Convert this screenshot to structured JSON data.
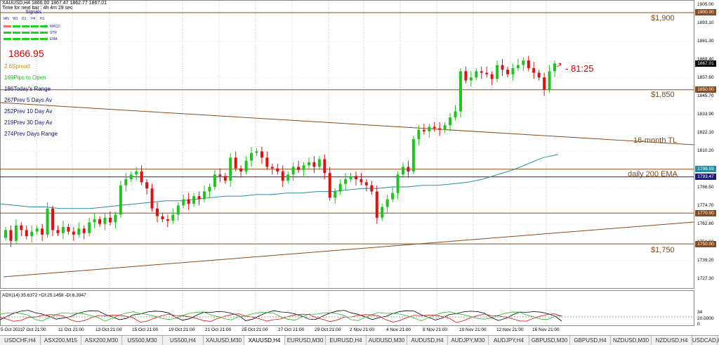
{
  "header": {
    "symbol_line": "XAUUSD,H4  1866.00 1867.47 1862.77 1867.01",
    "time_line": "Time for next bar : 4h 4m 29 sec",
    "signals_title": "Signals"
  },
  "signals": {
    "timeframes": [
      "MN",
      "W1",
      "D1",
      "H4",
      "H1"
    ],
    "indicators": [
      "MACD",
      "STR",
      "EMA"
    ],
    "colors": {
      "bull": "#1fd21f",
      "bear": "#ff6a60"
    }
  },
  "info_panel": {
    "bid": "1866.95",
    "rows": [
      {
        "value": "2.6",
        "label": "Spread",
        "color": "#e08a00"
      },
      {
        "value": "169",
        "label": "Pips to Open",
        "color": "#1fb81f"
      },
      {
        "value": "186",
        "label": "Today's Range",
        "color": "#10106a"
      },
      {
        "value": "267",
        "label": "Prev 5 Days Av",
        "color": "#10106a"
      },
      {
        "value": "252",
        "label": "Prev 10 Day Av",
        "color": "#10106a"
      },
      {
        "value": "219",
        "label": "Prev 30 Day Av",
        "color": "#10106a"
      },
      {
        "value": "274",
        "label": "Prev Days Range",
        "color": "#10106a"
      }
    ]
  },
  "annotations": {
    "level_1900": "$1,900",
    "level_1850": "$1,850",
    "level_1750": "$1,750",
    "trendline": "16-month TL",
    "ema": "daily 200 EMA",
    "timer": "- 81:25"
  },
  "chart_data": {
    "type": "candlestick",
    "symbol": "XAUUSD",
    "timeframe": "H4",
    "ylim": [
      1724,
      1908
    ],
    "y_ticks": [
      "1905.00",
      "1893.10",
      "1881.30",
      "1869.40",
      "1857.60",
      "1845.70",
      "1833.90",
      "1822.10",
      "1810.20",
      "1798.40",
      "1786.50",
      "1774.70",
      "1762.80",
      "1751.00",
      "1739.20",
      "1727.30"
    ],
    "x_ticks": [
      "5 Oct 2021",
      "7 Oct 21:00",
      "11 Oct 21:00",
      "13 Oct 21:00",
      "15 Oct 21:00",
      "19 Oct 21:00",
      "21 Oct 21:00",
      "25 Oct 21:00",
      "27 Oct 21:00",
      "29 Oct 21:00",
      "2 Nov 21:00",
      "4 Nov 21:00",
      "8 Nov 21:00",
      "10 Nov 21:00",
      "12 Nov 21:00",
      "16 Nov 21:00"
    ],
    "price_boxes": [
      {
        "label": "1900.00",
        "value": 1900,
        "kind": "level"
      },
      {
        "label": "1867.01",
        "value": 1867.01,
        "kind": "current"
      },
      {
        "label": "1850.00",
        "value": 1850,
        "kind": "level"
      },
      {
        "label": "1798.59",
        "value": 1798.59,
        "kind": "ema"
      },
      {
        "label": "1793.47",
        "value": 1793.47,
        "kind": "level"
      },
      {
        "label": "1770.00",
        "value": 1770,
        "kind": "level"
      },
      {
        "label": "1750.00",
        "value": 1750,
        "kind": "level"
      }
    ],
    "horizontal_levels": [
      1900,
      1850,
      1798.5,
      1793.47,
      1770,
      1750
    ],
    "closes": [
      1759,
      1752,
      1762,
      1759,
      1755,
      1758,
      1760,
      1756,
      1773,
      1759,
      1757,
      1761,
      1758,
      1756,
      1760,
      1757,
      1764,
      1766,
      1763,
      1767,
      1764,
      1769,
      1788,
      1792,
      1795,
      1797,
      1790,
      1786,
      1773,
      1768,
      1766,
      1765,
      1769,
      1775,
      1779,
      1776,
      1781,
      1779,
      1784,
      1787,
      1795,
      1794,
      1791,
      1806,
      1799,
      1797,
      1804,
      1809,
      1810,
      1806,
      1800,
      1799,
      1797,
      1791,
      1795,
      1800,
      1798,
      1801,
      1803,
      1800,
      1805,
      1796,
      1780,
      1784,
      1789,
      1792,
      1794,
      1792,
      1790,
      1788,
      1784,
      1767,
      1774,
      1779,
      1783,
      1795,
      1800,
      1797,
      1818,
      1824,
      1823,
      1826,
      1825,
      1824,
      1827,
      1832,
      1836,
      1862,
      1856,
      1858,
      1862,
      1861,
      1860,
      1857,
      1866,
      1863,
      1860,
      1864,
      1866,
      1869,
      1864,
      1861,
      1858,
      1850,
      1862,
      1867
    ],
    "ema_values": [
      1776,
      1775,
      1774,
      1774,
      1773,
      1773,
      1773,
      1774,
      1775,
      1776,
      1777,
      1778,
      1778,
      1779,
      1780,
      1781,
      1781,
      1782,
      1782,
      1783,
      1783,
      1784,
      1784,
      1785,
      1786,
      1786,
      1787,
      1787,
      1788,
      1788,
      1789,
      1790,
      1792,
      1795,
      1798,
      1802,
      1806,
      1808
    ],
    "adx": {
      "label": "ADX(14) 35.6372 +DI:25.1458 -DI:6.3947",
      "ticks": [
        "34",
        "20.0000",
        "0"
      ]
    }
  },
  "tabs": [
    "USDCHF,H4",
    "ASX200,M15",
    "ASX200,M30",
    "US500,M30",
    "US500,H4",
    "XAUUSD,M30",
    "XAUUSD,H4",
    "EURUSD,M30",
    "EURUSD,H4",
    "AUDUSD,M30",
    "AUDUSD,H4",
    "AUDJPY,M30",
    "AUDJPY,H4",
    "GBPUSD,M30",
    "GBPUSD,H4",
    "NZDUSD,M30",
    "NZDUSD,H4",
    "USDCAD,H4"
  ],
  "active_tab": "XAUUSD,H4"
}
